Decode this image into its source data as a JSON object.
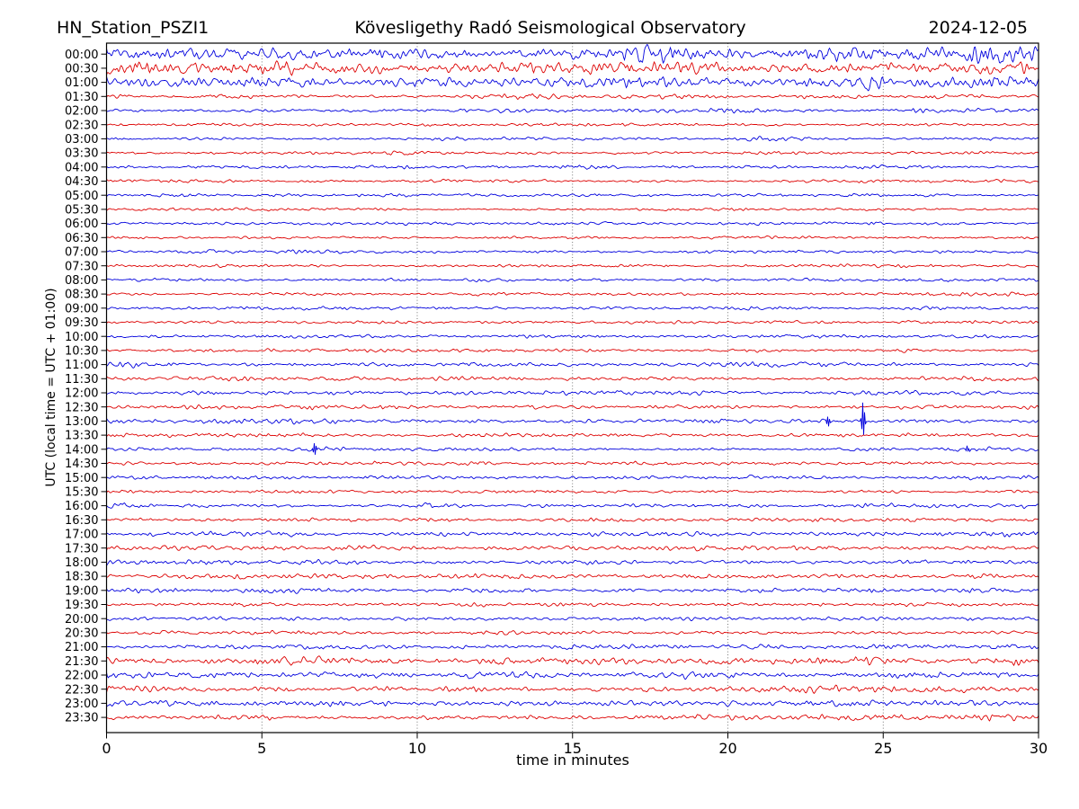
{
  "header": {
    "station": "HN_Station_PSZI1",
    "observatory": "Kövesligethy Radó Seismological Observatory",
    "date": "2024-12-05"
  },
  "axes": {
    "xlabel": "time in minutes",
    "ylabel": "UTC (local time = UTC + 01:00)",
    "x_ticks": [
      0,
      5,
      10,
      15,
      20,
      25,
      30
    ],
    "x_range": [
      0,
      30
    ]
  },
  "colors": {
    "trace_blue": "#0000dd",
    "trace_red": "#dd0000",
    "grid": "#555555",
    "frame": "#000000",
    "text": "#000000",
    "background": "#ffffff"
  },
  "chart_data": {
    "type": "line",
    "subtype": "helicorder-dayplot",
    "title": "HN_Station_PSZI1 | Kövesligethy Radó Seismological Observatory | 2024-12-05",
    "xlabel": "time in minutes",
    "ylabel": "UTC (local time = UTC + 01:00)",
    "xlim": [
      0,
      30
    ],
    "minutes_per_row": 30,
    "rows_count": 48,
    "grid": "vertical dotted lines every 5 minutes",
    "trace_colors": {
      "even_rows": "#0000dd",
      "odd_rows": "#dd0000"
    },
    "events": [
      {
        "row": "13:00",
        "minute": 24.4,
        "description": "large sharp spike crossing adjacent rows"
      },
      {
        "row": "13:00",
        "minute": 23.2,
        "description": "small spike"
      },
      {
        "row": "14:00",
        "minute": 6.7,
        "description": "small spike"
      },
      {
        "row": "14:00",
        "minute": 27.7,
        "description": "tiny blip"
      },
      {
        "row": "23:30",
        "minute": 13.4,
        "description": "short noise burst"
      },
      {
        "row": "00:00-01:00",
        "minute": null,
        "description": "high-amplitude microseismic noise, strongest near end of rows"
      },
      {
        "row": "21:30-23:30",
        "minute": null,
        "description": "elevated evening noise level"
      }
    ],
    "rows": [
      {
        "t": "00:00",
        "amp": 4.2,
        "bursts": [
          [
            2,
            1.2,
            1.4
          ],
          [
            8.5,
            1.2,
            1.3
          ],
          [
            17.6,
            0.9,
            1.7
          ],
          [
            23.8,
            1.2,
            1.8
          ],
          [
            28.3,
            1.3,
            2.0
          ]
        ],
        "spikes": []
      },
      {
        "t": "00:30",
        "amp": 4.2,
        "bursts": [
          [
            0.8,
            0.8,
            1.5
          ],
          [
            5.6,
            1.0,
            1.7
          ],
          [
            12,
            1.4,
            1.4
          ],
          [
            19,
            1.4,
            1.3
          ],
          [
            25.6,
            1.0,
            1.6
          ],
          [
            29,
            0.8,
            1.5
          ]
        ],
        "spikes": []
      },
      {
        "t": "01:00",
        "amp": 3.8,
        "bursts": [
          [
            4.6,
            1.4,
            1.5
          ],
          [
            10,
            1.0,
            1.4
          ],
          [
            17,
            1.0,
            1.3
          ],
          [
            24.4,
            0.5,
            2.0
          ],
          [
            28.6,
            0.8,
            1.7
          ]
        ],
        "spikes": []
      },
      {
        "t": "01:30",
        "amp": 1.7,
        "bursts": [
          [
            14,
            0.6,
            1.7
          ],
          [
            27,
            0.6,
            1.5
          ]
        ],
        "spikes": []
      },
      {
        "t": "02:00",
        "amp": 1.5,
        "bursts": [
          [
            20,
            1.0,
            1.35
          ],
          [
            26,
            1.0,
            1.4
          ]
        ],
        "spikes": []
      },
      {
        "t": "02:30",
        "amp": 1.2,
        "bursts": [],
        "spikes": []
      },
      {
        "t": "03:00",
        "amp": 1.2,
        "bursts": [
          [
            21.5,
            0.8,
            1.6
          ]
        ],
        "spikes": []
      },
      {
        "t": "03:30",
        "amp": 1.2,
        "bursts": [
          [
            10,
            0.7,
            1.5
          ]
        ],
        "spikes": []
      },
      {
        "t": "04:00",
        "amp": 1.35,
        "bursts": [
          [
            9.5,
            0.5,
            1.6
          ],
          [
            15.5,
            0.5,
            1.7
          ]
        ],
        "spikes": []
      },
      {
        "t": "04:30",
        "amp": 1.2,
        "bursts": [],
        "spikes": []
      },
      {
        "t": "05:00",
        "amp": 1.2,
        "bursts": [
          [
            2.5,
            0.5,
            1.5
          ]
        ],
        "spikes": []
      },
      {
        "t": "05:30",
        "amp": 1.1,
        "bursts": [],
        "spikes": []
      },
      {
        "t": "06:00",
        "amp": 1.25,
        "bursts": [],
        "spikes": []
      },
      {
        "t": "06:30",
        "amp": 1.1,
        "bursts": [],
        "spikes": []
      },
      {
        "t": "07:00",
        "amp": 1.35,
        "bursts": [
          [
            6,
            0.6,
            1.45
          ]
        ],
        "spikes": []
      },
      {
        "t": "07:30",
        "amp": 1.25,
        "bursts": [],
        "spikes": []
      },
      {
        "t": "08:00",
        "amp": 1.25,
        "bursts": [],
        "spikes": []
      },
      {
        "t": "08:30",
        "amp": 1.25,
        "bursts": [
          [
            4,
            0.5,
            1.45
          ],
          [
            29.3,
            0.4,
            1.5
          ]
        ],
        "spikes": []
      },
      {
        "t": "09:00",
        "amp": 1.25,
        "bursts": [],
        "spikes": []
      },
      {
        "t": "09:30",
        "amp": 1.25,
        "bursts": [],
        "spikes": []
      },
      {
        "t": "10:00",
        "amp": 1.45,
        "bursts": [
          [
            9,
            0.5,
            1.5
          ]
        ],
        "spikes": []
      },
      {
        "t": "10:30",
        "amp": 1.35,
        "bursts": [],
        "spikes": []
      },
      {
        "t": "11:00",
        "amp": 1.7,
        "bursts": [
          [
            0.8,
            0.5,
            1.7
          ],
          [
            21,
            0.8,
            1.35
          ]
        ],
        "spikes": []
      },
      {
        "t": "11:30",
        "amp": 1.55,
        "bursts": [
          [
            4.5,
            0.5,
            1.5
          ],
          [
            28,
            0.5,
            1.45
          ]
        ],
        "spikes": []
      },
      {
        "t": "12:00",
        "amp": 1.7,
        "bursts": [
          [
            2.8,
            0.5,
            1.6
          ]
        ],
        "spikes": []
      },
      {
        "t": "12:30",
        "amp": 1.7,
        "bursts": [
          [
            2.5,
            0.4,
            1.7
          ],
          [
            6.2,
            0.4,
            1.5
          ]
        ],
        "spikes": []
      },
      {
        "t": "13:00",
        "amp": 1.7,
        "bursts": [
          [
            5.5,
            0.5,
            1.45
          ]
        ],
        "spikes": [
          [
            23.2,
            6
          ],
          [
            24.35,
            20
          ]
        ]
      },
      {
        "t": "13:30",
        "amp": 1.55,
        "bursts": [
          [
            1.5,
            0.5,
            1.5
          ]
        ],
        "spikes": []
      },
      {
        "t": "14:00",
        "amp": 1.55,
        "bursts": [],
        "spikes": [
          [
            6.7,
            7
          ],
          [
            27.7,
            3
          ]
        ]
      },
      {
        "t": "14:30",
        "amp": 1.45,
        "bursts": [
          [
            0.5,
            0.4,
            1.6
          ]
        ],
        "spikes": []
      },
      {
        "t": "15:00",
        "amp": 1.55,
        "bursts": [],
        "spikes": []
      },
      {
        "t": "15:30",
        "amp": 1.4,
        "bursts": [
          [
            0.7,
            0.4,
            1.7
          ]
        ],
        "spikes": []
      },
      {
        "t": "16:00",
        "amp": 1.55,
        "bursts": [
          [
            0.5,
            0.4,
            1.7
          ],
          [
            10,
            0.5,
            1.35
          ]
        ],
        "spikes": []
      },
      {
        "t": "16:30",
        "amp": 1.45,
        "bursts": [
          [
            1,
            0.5,
            1.6
          ]
        ],
        "spikes": []
      },
      {
        "t": "17:00",
        "amp": 1.85,
        "bursts": [
          [
            29,
            0.5,
            1.45
          ]
        ],
        "spikes": []
      },
      {
        "t": "17:30",
        "amp": 1.85,
        "bursts": [
          [
            2,
            0.8,
            1.25
          ]
        ],
        "spikes": []
      },
      {
        "t": "18:00",
        "amp": 1.95,
        "bursts": [],
        "spikes": []
      },
      {
        "t": "18:30",
        "amp": 1.85,
        "bursts": [
          [
            13,
            0.7,
            1.3
          ],
          [
            24,
            0.7,
            1.3
          ]
        ],
        "spikes": []
      },
      {
        "t": "19:00",
        "amp": 1.95,
        "bursts": [
          [
            6,
            0.7,
            1.3
          ]
        ],
        "spikes": []
      },
      {
        "t": "19:30",
        "amp": 1.65,
        "bursts": [],
        "spikes": []
      },
      {
        "t": "20:00",
        "amp": 1.65,
        "bursts": [],
        "spikes": []
      },
      {
        "t": "20:30",
        "amp": 1.65,
        "bursts": [],
        "spikes": []
      },
      {
        "t": "21:00",
        "amp": 1.85,
        "bursts": [
          [
            25,
            1.0,
            1.3
          ],
          [
            29,
            0.5,
            1.5
          ]
        ],
        "spikes": []
      },
      {
        "t": "21:30",
        "amp": 2.5,
        "bursts": [
          [
            5.5,
            1.4,
            1.4
          ],
          [
            12.6,
            0.6,
            1.6
          ],
          [
            23.5,
            0.8,
            1.5
          ],
          [
            29,
            0.8,
            1.6
          ]
        ],
        "spikes": []
      },
      {
        "t": "22:00",
        "amp": 2.5,
        "bursts": [
          [
            1.5,
            1.0,
            1.3
          ],
          [
            7,
            1.0,
            1.25
          ],
          [
            20,
            1.0,
            1.25
          ],
          [
            27.5,
            1.0,
            1.4
          ]
        ],
        "spikes": []
      },
      {
        "t": "22:30",
        "amp": 2.3,
        "bursts": [
          [
            10,
            1.0,
            1.25
          ],
          [
            22,
            1.0,
            1.35
          ],
          [
            26,
            1.0,
            1.35
          ]
        ],
        "spikes": []
      },
      {
        "t": "23:00",
        "amp": 2.3,
        "bursts": [
          [
            2.5,
            1.0,
            1.35
          ],
          [
            27,
            1.0,
            1.3
          ]
        ],
        "spikes": []
      },
      {
        "t": "23:30",
        "amp": 2.3,
        "bursts": [
          [
            13.45,
            0.35,
            2.2
          ],
          [
            18.5,
            1.0,
            1.25
          ],
          [
            24,
            1.4,
            1.4
          ],
          [
            28,
            1.0,
            1.3
          ]
        ],
        "spikes": []
      }
    ]
  }
}
